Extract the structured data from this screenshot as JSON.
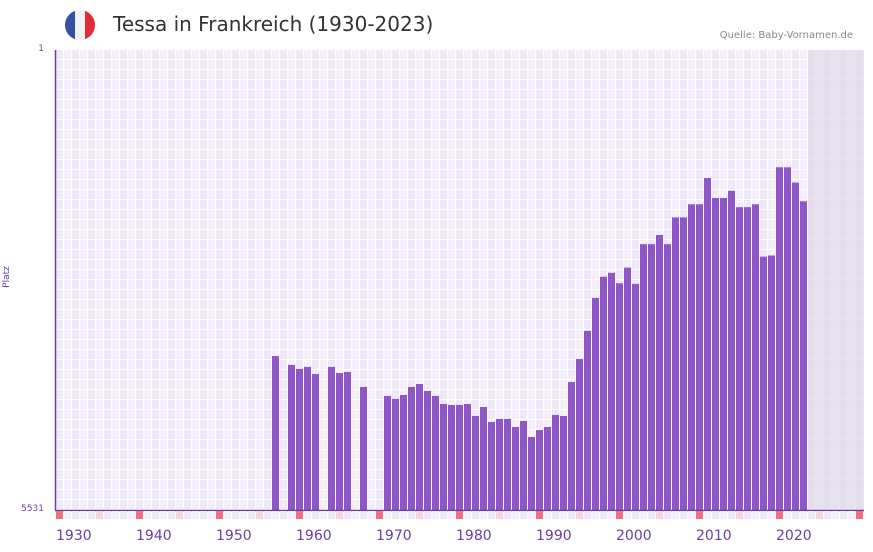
{
  "header": {
    "title": "Tessa in Frankreich (1930-2023)",
    "source": "Quelle: Baby-Vornamen.de",
    "flag_colors": [
      "#3451a3",
      "#f0f2f6",
      "#e32b36"
    ]
  },
  "chart_data": {
    "type": "bar",
    "title": "Tessa in Frankreich (1930-2023)",
    "ylabel": "Platz",
    "yscale": "log (inverted, rank)",
    "ylim": [
      5531,
      1
    ],
    "ytick_labels": [
      "1",
      "5531"
    ],
    "xtick_labels": [
      "1930",
      "1940",
      "1950",
      "1960",
      "1970",
      "1980",
      "1990",
      "2000",
      "2010",
      "2020"
    ],
    "x_start": 1930,
    "x_end_data": 2023,
    "x_end_axis": 2030,
    "years": [
      1957,
      1958,
      1959,
      1960,
      1961,
      1962,
      1963,
      1964,
      1965,
      1966,
      1967,
      1968,
      1969,
      1970,
      1971,
      1972,
      1973,
      1974,
      1975,
      1976,
      1977,
      1978,
      1979,
      1980,
      1981,
      1982,
      1983,
      1984,
      1985,
      1986,
      1987,
      1988,
      1989,
      1990,
      1991,
      1992,
      1993,
      1994,
      1995,
      1996,
      1997,
      1998,
      1999,
      2000,
      2001,
      2002,
      2003,
      2004,
      2005,
      2006,
      2007,
      2008,
      2009,
      2010,
      2011,
      2012,
      2013,
      2014,
      2015,
      2016,
      2017,
      2018,
      2019,
      2020,
      2021,
      2022,
      2023
    ],
    "ranks": [
      309,
      null,
      365,
      394,
      379,
      433,
      null,
      379,
      425,
      417,
      null,
      552,
      null,
      null,
      653,
      691,
      641,
      552,
      522,
      595,
      653,
      759,
      773,
      773,
      759,
      950,
      803,
      1063,
      1005,
      1005,
      1168,
      1044,
      1409,
      1236,
      1168,
      932,
      950,
      503,
      327,
      193,
      104,
      70,
      65,
      79,
      59,
      80,
      38,
      38,
      32,
      38,
      23,
      23,
      18,
      18,
      11,
      16,
      16,
      14,
      19,
      19,
      18,
      48,
      47,
      9,
      9,
      12,
      17
    ],
    "colors": {
      "bar": "#8e56c6",
      "decade_marker": "#e8737a",
      "half_decade_marker": "#f5d6de",
      "future_shade": "#e2dcea"
    }
  }
}
